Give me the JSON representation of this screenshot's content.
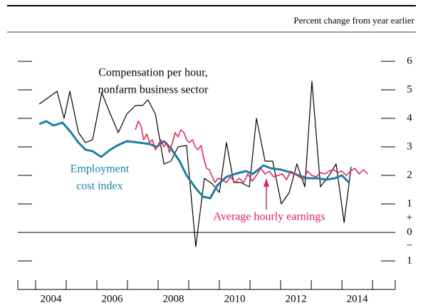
{
  "chart_data": {
    "type": "line",
    "subtitle": "Percent change from year earlier",
    "xlim": [
      2003.42,
      2015.74
    ],
    "xticks": [
      2004,
      2005,
      2006,
      2007,
      2008,
      2009,
      2010,
      2011,
      2012,
      2013,
      2014,
      2015
    ],
    "xtick_labels": [
      {
        "value": 2004.5,
        "label": "2004"
      },
      {
        "value": 2006.5,
        "label": "2006"
      },
      {
        "value": 2008.5,
        "label": "2008"
      },
      {
        "value": 2010.5,
        "label": "2010"
      },
      {
        "value": 2012.5,
        "label": "2012"
      },
      {
        "value": 2014.5,
        "label": "2014"
      }
    ],
    "ylim": [
      -1.6,
      6.6
    ],
    "yticks": [
      {
        "value": -1,
        "label": "1"
      },
      0,
      1,
      2,
      3,
      4,
      5,
      6
    ],
    "sign_plus": "+",
    "sign_minus": "–",
    "series": [
      {
        "label_lines": [
          "Compensation per hour,",
          "nonfarm business sector"
        ],
        "color": "#000000",
        "width": 1.2,
        "x": [
          2004.12,
          2004.7,
          2004.93,
          2005.12,
          2005.4,
          2005.63,
          2005.86,
          2006.16,
          2006.44,
          2006.7,
          2006.98,
          2007.26,
          2007.49,
          2007.67,
          2007.91,
          2008.19,
          2008.42,
          2008.65,
          2008.93,
          2009.23,
          2009.51,
          2009.77,
          2010.0,
          2010.23,
          2010.47,
          2010.7,
          2010.98,
          2011.21,
          2011.49,
          2011.74,
          2012.02,
          2012.28,
          2012.53,
          2012.79,
          2013.02,
          2013.3,
          2013.58,
          2013.81,
          2014.07,
          2014.3
        ],
        "values": [
          4.5,
          4.95,
          4.0,
          4.95,
          3.5,
          3.15,
          3.25,
          4.9,
          4.15,
          3.5,
          4.15,
          4.45,
          4.45,
          4.65,
          4.15,
          2.4,
          2.5,
          3.0,
          3.05,
          -0.5,
          1.9,
          1.7,
          1.4,
          3.15,
          1.75,
          1.75,
          1.6,
          4.0,
          2.5,
          2.5,
          1.0,
          1.4,
          2.4,
          1.6,
          5.3,
          1.6,
          2.0,
          2.4,
          0.35,
          2.3
        ]
      },
      {
        "label_lines": [
          "Employment",
          "cost index"
        ],
        "color": "#1a7fa6",
        "width": 3,
        "x": [
          2004.12,
          2004.35,
          2004.58,
          2004.88,
          2005.16,
          2005.4,
          2005.63,
          2005.86,
          2006.14,
          2006.44,
          2006.67,
          2006.98,
          2007.37,
          2007.72,
          2007.95,
          2008.19,
          2008.42,
          2008.7,
          2008.93,
          2009.23,
          2009.47,
          2009.7,
          2009.93,
          2010.23,
          2010.51,
          2010.86,
          2011.09,
          2011.44,
          2011.67,
          2012.02,
          2012.33,
          2012.6,
          2012.88,
          2013.19,
          2013.49,
          2013.77,
          2014.0,
          2014.23
        ],
        "values": [
          3.8,
          3.9,
          3.75,
          3.85,
          3.5,
          3.15,
          2.9,
          2.85,
          2.65,
          2.9,
          3.05,
          3.2,
          3.15,
          3.1,
          3.0,
          3.2,
          2.95,
          2.5,
          2.0,
          1.55,
          1.25,
          1.2,
          1.65,
          1.95,
          2.05,
          2.15,
          2.05,
          2.35,
          2.25,
          2.2,
          2.1,
          2.0,
          1.9,
          1.9,
          1.85,
          1.9,
          2.0,
          1.75
        ]
      },
      {
        "label_lines": [
          "Average hourly earnings"
        ],
        "color": "#dc2050",
        "width": 1.5,
        "x": [
          2007.26,
          2007.35,
          2007.44,
          2007.53,
          2007.63,
          2007.72,
          2007.81,
          2007.91,
          2008.0,
          2008.09,
          2008.19,
          2008.28,
          2008.37,
          2008.47,
          2008.56,
          2008.65,
          2008.74,
          2008.84,
          2008.93,
          2009.02,
          2009.12,
          2009.21,
          2009.3,
          2009.4,
          2009.49,
          2009.58,
          2009.67,
          2009.77,
          2009.86,
          2009.95,
          2010.09,
          2010.23,
          2010.37,
          2010.51,
          2010.65,
          2010.79,
          2010.93,
          2011.07,
          2011.21,
          2011.35,
          2011.49,
          2011.63,
          2011.77,
          2011.91,
          2012.05,
          2012.19,
          2012.33,
          2012.47,
          2012.6,
          2012.74,
          2012.88,
          2013.02,
          2013.16,
          2013.3,
          2013.44,
          2013.58,
          2013.72,
          2013.86,
          2014.0,
          2014.14,
          2014.28,
          2014.42,
          2014.56,
          2014.7,
          2014.84
        ],
        "values": [
          3.6,
          3.9,
          3.75,
          3.25,
          3.45,
          3.15,
          3.25,
          2.9,
          3.05,
          3.25,
          3.0,
          3.15,
          2.8,
          3.15,
          3.5,
          3.35,
          3.6,
          3.5,
          3.25,
          3.15,
          3.25,
          3.0,
          2.9,
          3.05,
          2.6,
          2.25,
          2.2,
          1.95,
          1.75,
          1.9,
          1.85,
          1.75,
          1.95,
          1.75,
          1.9,
          1.75,
          2.05,
          1.8,
          2.0,
          2.25,
          2.05,
          2.15,
          1.95,
          2.0,
          2.05,
          1.85,
          2.15,
          2.05,
          1.95,
          1.85,
          2.15,
          2.0,
          1.95,
          2.1,
          2.05,
          2.15,
          2.2,
          2.1,
          2.15,
          2.0,
          2.15,
          2.25,
          2.05,
          2.2,
          2.05
        ]
      }
    ]
  }
}
